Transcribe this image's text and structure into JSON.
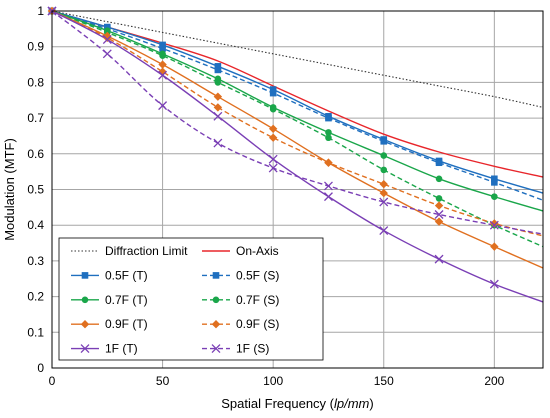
{
  "chart_data": {
    "type": "line",
    "xlabel": "Spatial Frequency (lp/mm)",
    "xlabel_parts": [
      "Spatial Frequency (",
      "lp/mm",
      ")"
    ],
    "ylabel": "Modulation (MTF)",
    "xlim": [
      0,
      222
    ],
    "ylim": [
      0,
      1
    ],
    "xticks": [
      0,
      50,
      100,
      150,
      200
    ],
    "yticks": [
      0,
      0.1,
      0.2,
      0.3,
      0.4,
      0.5,
      0.6,
      0.7,
      0.8,
      0.9,
      1
    ],
    "ytick_labels": [
      "0",
      "0.1",
      "0.2",
      "0.3",
      "0.4",
      "0.5",
      "0.6",
      "0.7",
      "0.8",
      "0.9",
      "1"
    ],
    "xtick_labels": [
      "0",
      "50",
      "100",
      "150",
      "200"
    ],
    "grid": true,
    "legend_position": "bottom-left",
    "series": [
      {
        "name": "Diffraction Limit",
        "color": "#333333",
        "style": "dotted",
        "marker": "none",
        "x": [
          0,
          25,
          50,
          75,
          100,
          125,
          150,
          175,
          200,
          222
        ],
        "y": [
          1.0,
          0.97,
          0.94,
          0.91,
          0.88,
          0.85,
          0.82,
          0.79,
          0.76,
          0.73
        ]
      },
      {
        "name": "On-Axis",
        "color": "#e8262b",
        "style": "solid",
        "marker": "none",
        "x": [
          0,
          25,
          50,
          75,
          100,
          125,
          150,
          175,
          200,
          222
        ],
        "y": [
          1.0,
          0.955,
          0.91,
          0.86,
          0.79,
          0.72,
          0.655,
          0.605,
          0.565,
          0.535
        ]
      },
      {
        "name": "0.5F (T)",
        "color": "#1f6fbf",
        "style": "solid",
        "marker": "square",
        "x": [
          0,
          25,
          50,
          75,
          100,
          125,
          150,
          175,
          200,
          222
        ],
        "y": [
          1.0,
          0.955,
          0.905,
          0.845,
          0.78,
          0.705,
          0.64,
          0.58,
          0.53,
          0.49
        ],
        "marker_x": [
          0,
          25,
          50,
          75,
          100,
          125,
          150,
          175,
          200
        ]
      },
      {
        "name": "0.5F (S)",
        "color": "#1f6fbf",
        "style": "dashed",
        "marker": "square",
        "x": [
          0,
          25,
          50,
          75,
          100,
          125,
          150,
          175,
          200,
          222
        ],
        "y": [
          1.0,
          0.95,
          0.895,
          0.835,
          0.77,
          0.7,
          0.635,
          0.575,
          0.52,
          0.47
        ],
        "marker_x": [
          0,
          25,
          50,
          75,
          100,
          125,
          150,
          175,
          200
        ]
      },
      {
        "name": "0.7F (T)",
        "color": "#1aa64a",
        "style": "solid",
        "marker": "circle",
        "x": [
          0,
          25,
          50,
          75,
          100,
          125,
          150,
          175,
          200,
          222
        ],
        "y": [
          1.0,
          0.945,
          0.88,
          0.81,
          0.73,
          0.66,
          0.595,
          0.53,
          0.48,
          0.44
        ],
        "marker_x": [
          0,
          25,
          50,
          75,
          100,
          125,
          150,
          175,
          200
        ]
      },
      {
        "name": "0.7F (S)",
        "color": "#1aa64a",
        "style": "dashed",
        "marker": "circle",
        "x": [
          0,
          25,
          50,
          75,
          100,
          125,
          150,
          175,
          200,
          222
        ],
        "y": [
          1.0,
          0.94,
          0.875,
          0.8,
          0.725,
          0.645,
          0.555,
          0.475,
          0.4,
          0.34
        ],
        "marker_x": [
          0,
          25,
          50,
          75,
          100,
          125,
          150,
          175,
          200
        ]
      },
      {
        "name": "0.9F (T)",
        "color": "#e07020",
        "style": "solid",
        "marker": "diamond",
        "x": [
          0,
          25,
          50,
          75,
          100,
          125,
          150,
          175,
          200,
          222
        ],
        "y": [
          1.0,
          0.93,
          0.85,
          0.76,
          0.67,
          0.575,
          0.49,
          0.41,
          0.34,
          0.28
        ],
        "marker_x": [
          0,
          25,
          50,
          75,
          100,
          125,
          150,
          175,
          200
        ]
      },
      {
        "name": "0.9F (S)",
        "color": "#e07020",
        "style": "dashed",
        "marker": "diamond",
        "x": [
          0,
          25,
          50,
          75,
          100,
          125,
          150,
          175,
          200,
          222
        ],
        "y": [
          1.0,
          0.925,
          0.83,
          0.73,
          0.645,
          0.575,
          0.515,
          0.455,
          0.405,
          0.37
        ],
        "marker_x": [
          0,
          25,
          50,
          75,
          100,
          125,
          150,
          175,
          200
        ]
      },
      {
        "name": "1F (T)",
        "color": "#7a3fb5",
        "style": "solid",
        "marker": "x",
        "x": [
          0,
          25,
          50,
          75,
          100,
          125,
          150,
          175,
          200,
          222
        ],
        "y": [
          1.0,
          0.92,
          0.82,
          0.705,
          0.585,
          0.48,
          0.385,
          0.305,
          0.235,
          0.185
        ],
        "marker_x": [
          0,
          25,
          50,
          75,
          100,
          125,
          150,
          175,
          200
        ]
      },
      {
        "name": "1F (S)",
        "color": "#7a3fb5",
        "style": "dashed",
        "marker": "x",
        "x": [
          0,
          25,
          50,
          75,
          100,
          125,
          150,
          175,
          200,
          222
        ],
        "y": [
          1.0,
          0.88,
          0.735,
          0.63,
          0.56,
          0.51,
          0.465,
          0.43,
          0.4,
          0.375
        ],
        "marker_x": [
          0,
          25,
          50,
          75,
          100,
          125,
          150,
          175,
          200
        ]
      }
    ]
  }
}
